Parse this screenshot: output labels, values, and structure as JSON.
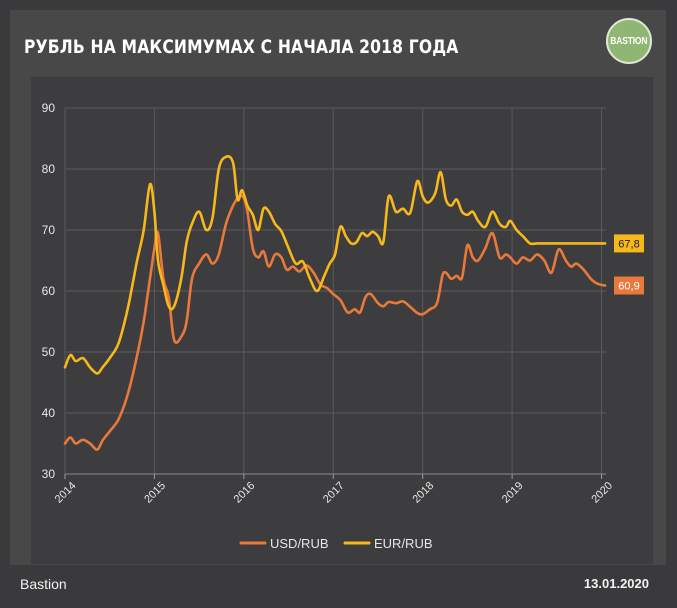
{
  "header": {
    "title": "РУБЛЬ НА МАКСИМУМАХ С НАЧАЛА 2018 ГОДА",
    "logo_text": "BASTION"
  },
  "footer": {
    "source": "Bastion",
    "date": "13.01.2020"
  },
  "colors": {
    "usd": "#e8793b",
    "eur": "#f6b81a",
    "grid": "#5a5a5c",
    "axis_text": "#e6e6e6"
  },
  "chart_data": {
    "type": "line",
    "title": "РУБЛЬ НА МАКСИМУМАХ С НАЧАЛА 2018 ГОДА",
    "xlabel": "",
    "ylabel": "",
    "xlim": [
      2014.0,
      2020.05
    ],
    "ylim": [
      30,
      90
    ],
    "x_ticks": [
      "2014",
      "2015",
      "2016",
      "2017",
      "2018",
      "2019",
      "2020"
    ],
    "y_ticks": [
      "30",
      "40",
      "50",
      "60",
      "70",
      "80",
      "90"
    ],
    "legend_position": "bottom-center",
    "series": [
      {
        "name": "USD/RUB",
        "color": "#e8793b",
        "last_label": "60,9",
        "x": [
          2014.0,
          2014.06,
          2014.12,
          2014.2,
          2014.28,
          2014.36,
          2014.42,
          2014.5,
          2014.6,
          2014.7,
          2014.8,
          2014.88,
          2014.93,
          2014.97,
          2015.0,
          2015.04,
          2015.1,
          2015.16,
          2015.22,
          2015.3,
          2015.36,
          2015.42,
          2015.5,
          2015.58,
          2015.65,
          2015.72,
          2015.8,
          2015.88,
          2015.95,
          2016.0,
          2016.04,
          2016.1,
          2016.16,
          2016.22,
          2016.28,
          2016.35,
          2016.42,
          2016.48,
          2016.55,
          2016.62,
          2016.7,
          2016.78,
          2016.86,
          2016.93,
          2017.0,
          2017.08,
          2017.16,
          2017.24,
          2017.3,
          2017.36,
          2017.42,
          2017.5,
          2017.56,
          2017.62,
          2017.7,
          2017.78,
          2017.86,
          2017.94,
          2018.0,
          2018.08,
          2018.16,
          2018.22,
          2018.26,
          2018.32,
          2018.38,
          2018.44,
          2018.5,
          2018.56,
          2018.62,
          2018.7,
          2018.78,
          2018.86,
          2018.93,
          2018.98,
          2019.05,
          2019.12,
          2019.2,
          2019.28,
          2019.36,
          2019.44,
          2019.52,
          2019.6,
          2019.66,
          2019.72,
          2019.8,
          2019.88,
          2019.94,
          2020.0,
          2020.04
        ],
        "values": [
          35.0,
          36.0,
          35.0,
          35.6,
          35.0,
          34.0,
          35.5,
          37.0,
          39.0,
          43.0,
          49.0,
          55.0,
          60.0,
          64.0,
          67.0,
          69.5,
          62.0,
          59.0,
          52.0,
          52.5,
          55.0,
          62.0,
          64.5,
          66.0,
          64.5,
          66.0,
          71.0,
          74.0,
          75.5,
          75.2,
          73.0,
          67.0,
          65.5,
          66.5,
          64.0,
          66.0,
          65.5,
          63.5,
          64.0,
          63.2,
          64.2,
          63.0,
          61.0,
          60.5,
          59.5,
          58.5,
          56.5,
          57.0,
          56.5,
          59.0,
          59.5,
          58.0,
          57.5,
          58.2,
          58.0,
          58.3,
          57.4,
          56.4,
          56.2,
          57.0,
          58.0,
          62.5,
          63.0,
          62.0,
          62.5,
          62.2,
          67.5,
          65.5,
          65.0,
          67.0,
          69.5,
          65.5,
          66.0,
          65.5,
          64.5,
          65.5,
          65.0,
          66.0,
          65.0,
          63.0,
          66.8,
          65.0,
          64.0,
          64.5,
          63.5,
          62.0,
          61.3,
          61.0,
          60.9
        ]
      },
      {
        "name": "EUR/RUB",
        "color": "#f6b81a",
        "last_label": "67,8",
        "x": [
          2014.0,
          2014.06,
          2014.12,
          2014.2,
          2014.28,
          2014.36,
          2014.42,
          2014.5,
          2014.6,
          2014.7,
          2014.8,
          2014.88,
          2014.95,
          2015.0,
          2015.04,
          2015.1,
          2015.16,
          2015.22,
          2015.3,
          2015.36,
          2015.42,
          2015.5,
          2015.58,
          2015.65,
          2015.72,
          2015.8,
          2015.88,
          2015.93,
          2015.98,
          2016.04,
          2016.1,
          2016.16,
          2016.22,
          2016.28,
          2016.35,
          2016.42,
          2016.5,
          2016.58,
          2016.66,
          2016.74,
          2016.82,
          2016.9,
          2016.96,
          2017.02,
          2017.08,
          2017.14,
          2017.2,
          2017.26,
          2017.32,
          2017.38,
          2017.44,
          2017.5,
          2017.56,
          2017.62,
          2017.7,
          2017.78,
          2017.86,
          2017.94,
          2018.0,
          2018.06,
          2018.14,
          2018.2,
          2018.26,
          2018.32,
          2018.38,
          2018.44,
          2018.5,
          2018.56,
          2018.62,
          2018.7,
          2018.78,
          2018.86,
          2018.93,
          2018.98,
          2019.05,
          2019.12,
          2019.2,
          2019.28,
          2019.36,
          2019.44,
          2019.52,
          2019.6,
          2019.66,
          2019.72,
          2019.8,
          2019.88,
          2019.94,
          2020.0,
          2020.04
        ],
        "values": [
          47.5,
          49.5,
          48.5,
          49.0,
          47.5,
          46.5,
          47.5,
          49.0,
          51.5,
          57.0,
          64.5,
          70.0,
          77.5,
          73.0,
          65.0,
          61.0,
          57.5,
          57.5,
          62.0,
          68.0,
          71.0,
          73.0,
          70.0,
          72.0,
          80.0,
          82.0,
          81.0,
          75.0,
          76.5,
          74.0,
          72.5,
          70.0,
          73.5,
          73.0,
          71.0,
          69.8,
          67.0,
          64.5,
          64.8,
          62.0,
          60.0,
          62.5,
          64.5,
          66.0,
          70.5,
          69.0,
          67.8,
          68.0,
          69.5,
          69.0,
          69.7,
          69.0,
          68.0,
          75.5,
          73.0,
          73.5,
          72.8,
          78.0,
          75.5,
          74.5,
          76.0,
          79.5,
          75.0,
          74.0,
          75.0,
          73.0,
          72.5,
          73.0,
          71.5,
          70.5,
          73.0,
          71.0,
          70.5,
          71.5,
          70.0,
          69.0,
          67.8,
          67.8,
          67.8,
          67.8,
          67.8,
          67.8,
          67.8,
          67.8,
          67.8,
          67.8,
          67.8,
          67.8,
          67.8
        ]
      }
    ]
  }
}
